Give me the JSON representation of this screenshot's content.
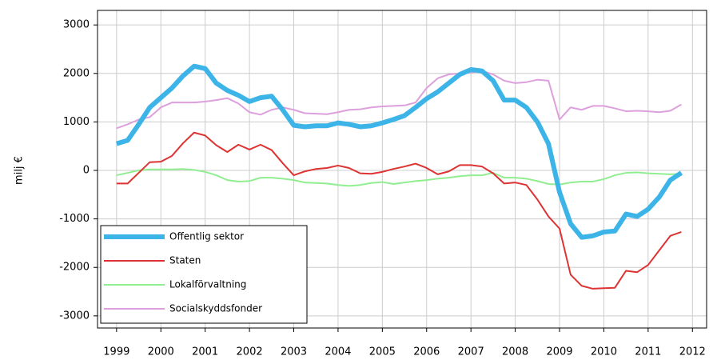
{
  "chart_data": {
    "type": "line",
    "ylabel": "milj €",
    "x": [
      1999,
      1999.25,
      1999.5,
      1999.75,
      2000,
      2000.25,
      2000.5,
      2000.75,
      2001,
      2001.25,
      2001.5,
      2001.75,
      2002,
      2002.25,
      2002.5,
      2002.75,
      2003,
      2003.25,
      2003.5,
      2003.75,
      2004,
      2004.25,
      2004.5,
      2004.75,
      2005,
      2005.25,
      2005.5,
      2005.75,
      2006,
      2006.25,
      2006.5,
      2006.75,
      2007,
      2007.25,
      2007.5,
      2007.75,
      2008,
      2008.25,
      2008.5,
      2008.75,
      2009,
      2009.25,
      2009.5,
      2009.75,
      2010,
      2010.25,
      2010.5,
      2010.75,
      2011,
      2011.25,
      2011.5,
      2011.75
    ],
    "series": [
      {
        "name": "Offentlig sektor",
        "color": "#3cb4e8",
        "width": 6,
        "values": [
          550,
          620,
          950,
          1300,
          1500,
          1700,
          1950,
          2150,
          2100,
          1800,
          1650,
          1550,
          1420,
          1500,
          1530,
          1250,
          930,
          900,
          920,
          920,
          980,
          950,
          900,
          920,
          980,
          1050,
          1130,
          1300,
          1480,
          1620,
          1800,
          1980,
          2080,
          2050,
          1850,
          1450,
          1450,
          1300,
          1000,
          550,
          -450,
          -1100,
          -1380,
          -1350,
          -1270,
          -1250,
          -900,
          -950,
          -800,
          -550,
          -200,
          -50
        ]
      },
      {
        "name": "Staten",
        "color": "#dd3333",
        "width": 2,
        "values": [
          -270,
          -270,
          -50,
          170,
          180,
          300,
          560,
          780,
          720,
          520,
          380,
          530,
          430,
          530,
          420,
          150,
          -100,
          -20,
          30,
          50,
          100,
          50,
          -60,
          -70,
          -30,
          30,
          80,
          140,
          50,
          -80,
          -20,
          110,
          110,
          80,
          -60,
          -270,
          -250,
          -300,
          -600,
          -950,
          -1200,
          -2150,
          -2380,
          -2440,
          -2430,
          -2420,
          -2070,
          -2100,
          -1950,
          -1650,
          -1350,
          -1270
        ]
      },
      {
        "name": "Lokalförvaltning",
        "color": "#90ee90",
        "width": 2,
        "values": [
          -100,
          -50,
          0,
          20,
          20,
          20,
          30,
          10,
          -30,
          -100,
          -200,
          -230,
          -220,
          -150,
          -150,
          -170,
          -200,
          -250,
          -260,
          -270,
          -300,
          -320,
          -300,
          -260,
          -240,
          -280,
          -250,
          -220,
          -200,
          -170,
          -150,
          -120,
          -100,
          -100,
          -50,
          -150,
          -150,
          -170,
          -220,
          -280,
          -290,
          -250,
          -230,
          -230,
          -180,
          -100,
          -50,
          -40,
          -60,
          -70,
          -80,
          -70
        ]
      },
      {
        "name": "Socialskyddsfonder",
        "color": "#dda0dd",
        "width": 2,
        "values": [
          870,
          950,
          1050,
          1100,
          1300,
          1400,
          1400,
          1400,
          1420,
          1450,
          1490,
          1380,
          1200,
          1150,
          1250,
          1300,
          1250,
          1180,
          1170,
          1160,
          1200,
          1250,
          1260,
          1300,
          1320,
          1330,
          1340,
          1400,
          1700,
          1900,
          1980,
          2000,
          2020,
          2050,
          1980,
          1850,
          1800,
          1820,
          1870,
          1850,
          1050,
          1300,
          1250,
          1330,
          1330,
          1280,
          1220,
          1230,
          1220,
          1200,
          1230,
          1360
        ]
      }
    ],
    "xlim": [
      1998.57,
      2012.32
    ],
    "xticks": [
      1999,
      2000,
      2001,
      2002,
      2003,
      2004,
      2005,
      2006,
      2007,
      2008,
      2009,
      2010,
      2011,
      2012
    ],
    "ylim": [
      -3250,
      3300
    ],
    "yticks": [
      -3000,
      -2000,
      -1000,
      0,
      1000,
      2000,
      3000
    ],
    "grid": true,
    "legend": "lower left"
  }
}
